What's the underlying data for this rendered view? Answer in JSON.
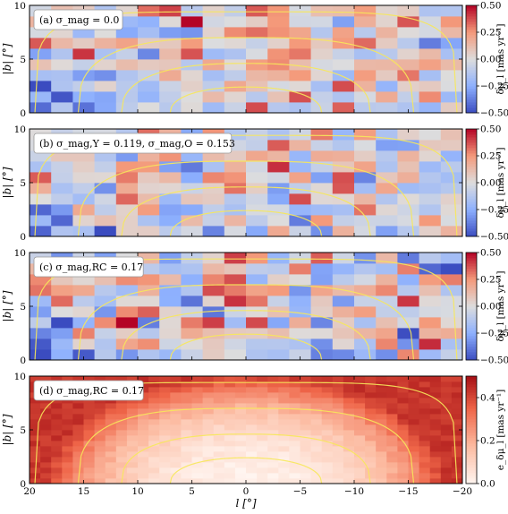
{
  "chart_data": [
    {
      "type": "heatmap",
      "panel_label": "(a) σ_mag = 0.0",
      "xlabel": "",
      "ylabel": "|b| [°]",
      "colorbar_label": "δμ_l [mas yr⁻¹]",
      "colormap": "diverging blue-white-red",
      "xlim": [
        20,
        -20
      ],
      "ylim": [
        0,
        10
      ],
      "clim": [
        -0.5,
        0.5
      ],
      "x_ticks": [
        "20",
        "15",
        "10",
        "5",
        "0",
        "−5",
        "−10",
        "−15",
        "−20"
      ],
      "y_ticks": [
        "0",
        "5",
        "10"
      ],
      "colorbar_ticks": [
        "0.50",
        "0.25",
        "0.00",
        "−0.25",
        "−0.50"
      ],
      "grid_shape": [
        10,
        20
      ],
      "seed": 11,
      "mean_pattern": "noise",
      "amplitude": 0.33,
      "contours": true
    },
    {
      "type": "heatmap",
      "panel_label": "(b) σ_mag,Y = 0.119, σ_mag,O = 0.153",
      "xlabel": "",
      "ylabel": "|b| [°]",
      "colorbar_label": "δμ_l [mas yr⁻¹]",
      "colormap": "diverging blue-white-red",
      "xlim": [
        20,
        -20
      ],
      "ylim": [
        0,
        10
      ],
      "clim": [
        -0.5,
        0.5
      ],
      "x_ticks": [
        "20",
        "15",
        "10",
        "5",
        "0",
        "−5",
        "−10",
        "−15",
        "−20"
      ],
      "y_ticks": [
        "0",
        "5",
        "10"
      ],
      "colorbar_ticks": [
        "0.50",
        "0.25",
        "0.00",
        "−0.25",
        "−0.50"
      ],
      "grid_shape": [
        10,
        20
      ],
      "seed": 27,
      "mean_pattern": "noise-bluecorner",
      "amplitude": 0.33,
      "contours": true
    },
    {
      "type": "heatmap",
      "panel_label": "(c) σ_mag,RC = 0.17",
      "xlabel": "",
      "ylabel": "|b| [°]",
      "colorbar_label": "δμ_l [mas yr⁻¹]",
      "colormap": "diverging blue-white-red",
      "xlim": [
        20,
        -20
      ],
      "ylim": [
        0,
        10
      ],
      "clim": [
        -0.5,
        0.5
      ],
      "x_ticks": [
        "20",
        "15",
        "10",
        "5",
        "0",
        "−5",
        "−10",
        "−15",
        "−20"
      ],
      "y_ticks": [
        "0",
        "5",
        "10"
      ],
      "colorbar_ticks": [
        "0.50",
        "0.25",
        "0.00",
        "−0.25",
        "−0.50"
      ],
      "grid_shape": [
        10,
        20
      ],
      "seed": 53,
      "mean_pattern": "noise-bluecorner",
      "amplitude": 0.36,
      "contours": true
    },
    {
      "type": "heatmap",
      "panel_label": "(d) σ_mag,RC = 0.17",
      "xlabel": "l [°]",
      "ylabel": "|b| [°]",
      "colorbar_label": "e_δμ_l [mas yr⁻¹]",
      "colormap": "sequential white-red",
      "xlim": [
        20,
        -20
      ],
      "ylim": [
        0,
        10
      ],
      "clim": [
        0.0,
        0.5
      ],
      "x_ticks": [
        "20",
        "15",
        "10",
        "5",
        "0",
        "−5",
        "−10",
        "−15",
        "−20"
      ],
      "y_ticks": [
        "0",
        "5",
        "10"
      ],
      "colorbar_ticks": [
        "0.4",
        "0.2",
        "0.0"
      ],
      "grid_shape": [
        20,
        40
      ],
      "seed": 91,
      "mean_pattern": "error-dome",
      "amplitude": 0.0,
      "contours": true
    }
  ]
}
